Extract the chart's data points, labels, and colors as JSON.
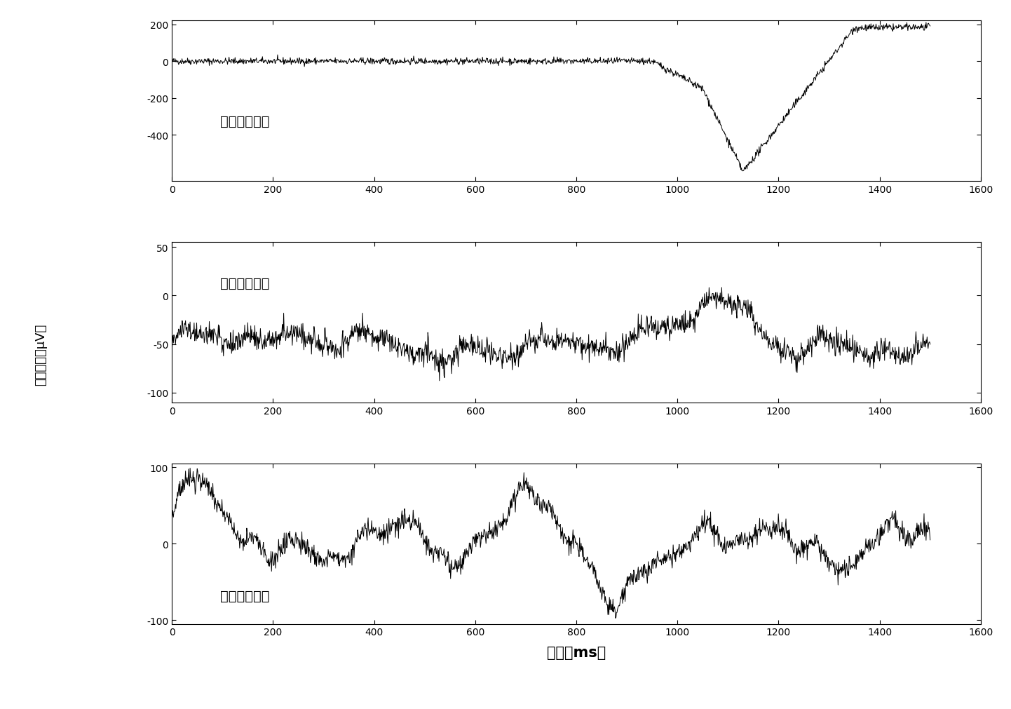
{
  "title": "",
  "xlabel": "时间（ms）",
  "ylabel_line1": "信号幅度",
  "ylabel_line2": "（μV）",
  "xlim": [
    0,
    1600
  ],
  "subplot1": {
    "label": "第一个主成分",
    "ylim": [
      -650,
      220
    ],
    "yticks": [
      200,
      0,
      -200,
      -400
    ],
    "color": "#000000"
  },
  "subplot2": {
    "label": "第二个主成分",
    "ylim": [
      -110,
      55
    ],
    "yticks": [
      50,
      0,
      -50,
      -100
    ],
    "color": "#000000"
  },
  "subplot3": {
    "label": "第三个主成分",
    "ylim": [
      -105,
      105
    ],
    "yticks": [
      100,
      0,
      -100
    ],
    "color": "#000000"
  },
  "line_color": "#000000",
  "line_width": 0.7,
  "bg_color": "#ffffff",
  "xticks": [
    0,
    200,
    400,
    600,
    800,
    1000,
    1200,
    1400,
    1600
  ],
  "seed": 42,
  "n_points": 1500
}
